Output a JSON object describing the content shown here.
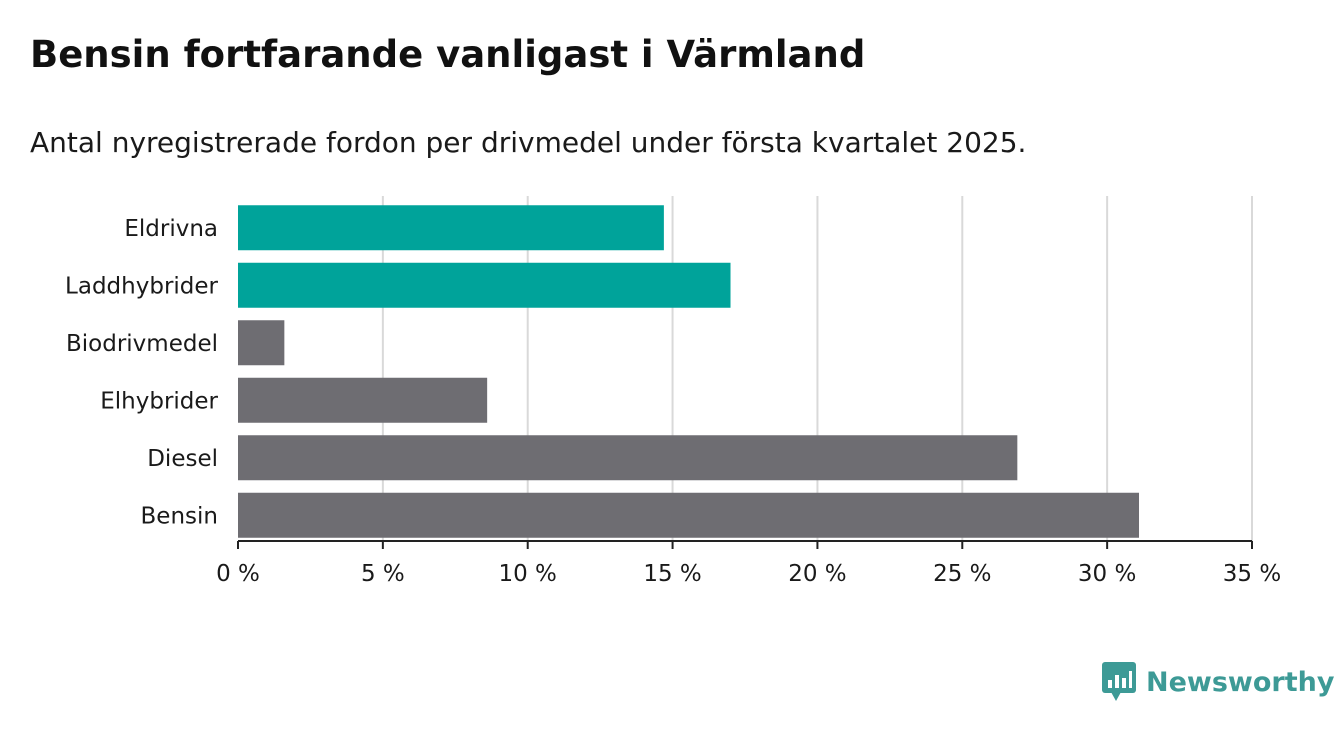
{
  "chart_data": {
    "type": "bar",
    "orientation": "horizontal",
    "title": "Bensin fortfarande vanligast i Värmland",
    "subtitle": "Antal nyregistrerade fordon per drivmedel under första kvartalet 2025.",
    "categories": [
      "Eldrivna",
      "Laddhybrider",
      "Biodrivmedel",
      "Elhybrider",
      "Diesel",
      "Bensin"
    ],
    "values": [
      14.7,
      17.0,
      1.6,
      8.6,
      26.9,
      31.1
    ],
    "bar_colors": [
      "#00a39a",
      "#00a39a",
      "#6e6d72",
      "#6e6d72",
      "#6e6d72",
      "#6e6d72"
    ],
    "xlim": [
      0,
      35
    ],
    "xticks": [
      0,
      5,
      10,
      15,
      20,
      25,
      30,
      35
    ],
    "xtick_labels": [
      "0 %",
      "5 %",
      "10 %",
      "15 %",
      "20 %",
      "25 %",
      "30 %",
      "35 %"
    ],
    "grid": true,
    "xlabel": "",
    "ylabel": ""
  },
  "brand": {
    "name": "Newsworthy",
    "color": "#3d9a96"
  },
  "colors": {
    "gridline": "#d9d9d9",
    "axis": "#222222",
    "text": "#1a1a1a"
  }
}
